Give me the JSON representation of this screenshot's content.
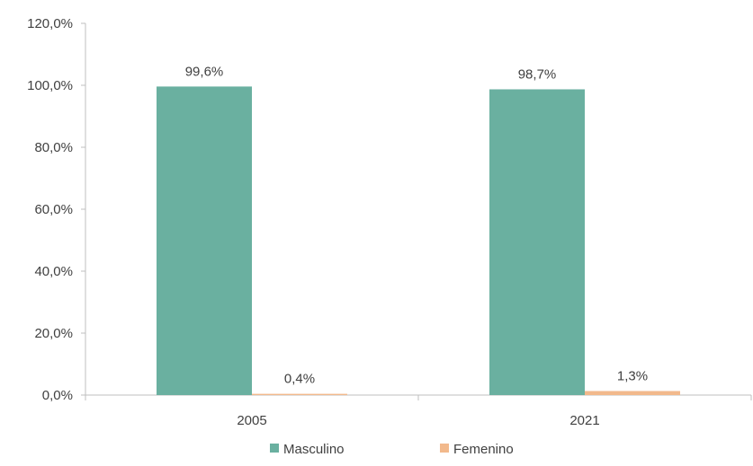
{
  "chart_data": {
    "type": "bar",
    "title": "",
    "xlabel": "",
    "ylabel": "",
    "categories": [
      "2005",
      "2021"
    ],
    "series": [
      {
        "name": "Masculino",
        "values": [
          99.6,
          98.7
        ],
        "labels": [
          "99,6%",
          "98,7%"
        ],
        "color": "#6AB0A0"
      },
      {
        "name": "Femenino",
        "values": [
          0.4,
          1.3
        ],
        "labels": [
          "0,4%",
          "1,3%"
        ],
        "color": "#F2B98C"
      }
    ],
    "ylim": [
      0,
      120
    ],
    "yticks": [
      0,
      20,
      40,
      60,
      80,
      100,
      120
    ],
    "ytick_labels": [
      "0,0%",
      "20,0%",
      "40,0%",
      "60,0%",
      "80,0%",
      "100,0%",
      "120,0%"
    ],
    "legend_position": "bottom",
    "grid": false
  }
}
